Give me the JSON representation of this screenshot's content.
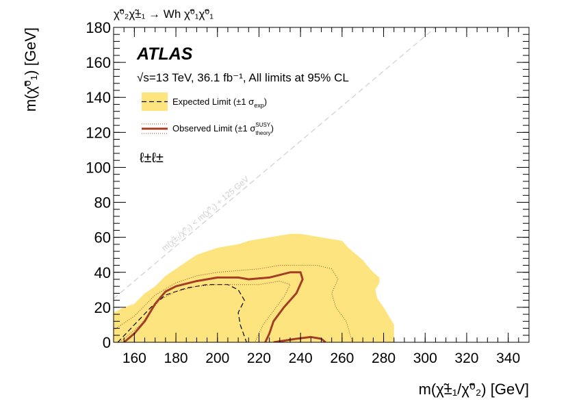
{
  "chart_data": {
    "type": "contour",
    "title": "χ̃⁰₂χ̃±₁ → Wh χ̃⁰₁χ̃⁰₁",
    "x_label": "m(χ̃±₁/χ̃⁰₂) [GeV]",
    "y_label": "m(χ̃⁰₁) [GeV]",
    "experiment": "ATLAS",
    "energy_label": "√s=13 TeV, 36.1 fb⁻¹, All limits at 95% CL",
    "channel": "ℓ±ℓ±",
    "diagonal_label": "m(χ̃±₁/χ̃⁰₂) < m(χ̃⁰₁) + 125 GeV",
    "diagonal_offset": 125,
    "legend": [
      {
        "text": "Expected Limit (±1 σ",
        "sub": "exp",
        "end": ")"
      },
      {
        "text": "Observed Limit (±1 σ",
        "sup": "SUSY",
        "sub": "theory",
        "end": ")"
      }
    ],
    "xlim": [
      150,
      350
    ],
    "ylim": [
      0,
      180
    ],
    "xticks": [
      160,
      180,
      200,
      220,
      240,
      260,
      280,
      300,
      320,
      340
    ],
    "yticks": [
      0,
      20,
      40,
      60,
      80,
      100,
      120,
      140,
      160,
      180
    ],
    "series": [
      {
        "style": "band",
        "color": "#fde47f",
        "x": [
          150,
          150,
          155,
          160,
          165,
          170,
          175,
          180,
          185,
          190,
          195,
          200,
          205,
          210,
          215,
          220,
          225,
          230,
          235,
          240,
          245,
          250,
          255,
          260,
          263,
          267,
          270,
          272,
          275,
          278,
          278,
          276,
          277,
          280,
          282,
          285,
          285
        ],
        "y": [
          0,
          17,
          20,
          22,
          28,
          32,
          38,
          42,
          46,
          50,
          52,
          54,
          55,
          56,
          58,
          59,
          60,
          61,
          62,
          62,
          61,
          60,
          59,
          58,
          54,
          50,
          47,
          44,
          40,
          37,
          34,
          30,
          25,
          20,
          16,
          10,
          0
        ]
      },
      {
        "style": "dashed",
        "color": "#000000",
        "x": [
          152,
          160,
          168,
          175,
          185,
          195,
          205,
          210,
          213,
          210,
          211,
          214
        ],
        "y": [
          0,
          10,
          20,
          27,
          31,
          33,
          33,
          30,
          24,
          17,
          10,
          0
        ]
      },
      {
        "style": "dotted",
        "color": "#a33d24",
        "x": [
          150,
          160,
          170,
          180,
          190,
          200,
          210,
          220,
          230,
          240,
          248,
          255,
          258,
          255,
          257,
          262,
          265
        ],
        "y": [
          7,
          15,
          27,
          34,
          38,
          40,
          41,
          42,
          44,
          44,
          44,
          42,
          36,
          28,
          20,
          12,
          0
        ]
      },
      {
        "style": "dotted",
        "color": "#a33d24",
        "x": [
          153,
          163,
          172,
          180,
          190,
          200,
          210,
          220,
          230,
          235,
          232,
          227,
          222,
          218
        ],
        "y": [
          0,
          10,
          24,
          29,
          32,
          33,
          33,
          33,
          35,
          33,
          26,
          18,
          10,
          0
        ]
      },
      {
        "style": "solid",
        "color": "#a33d24",
        "x": [
          155,
          160,
          165,
          170,
          175,
          180,
          190,
          200,
          210,
          215,
          225,
          235,
          240,
          241,
          238,
          232,
          227,
          225,
          223,
          null,
          227,
          238,
          245,
          250,
          252
        ],
        "y": [
          0,
          5,
          12,
          22,
          29,
          32,
          35,
          37,
          37,
          36,
          37,
          40,
          40,
          36,
          28,
          20,
          12,
          5,
          0,
          null,
          0,
          2,
          3,
          2,
          0
        ]
      }
    ]
  }
}
